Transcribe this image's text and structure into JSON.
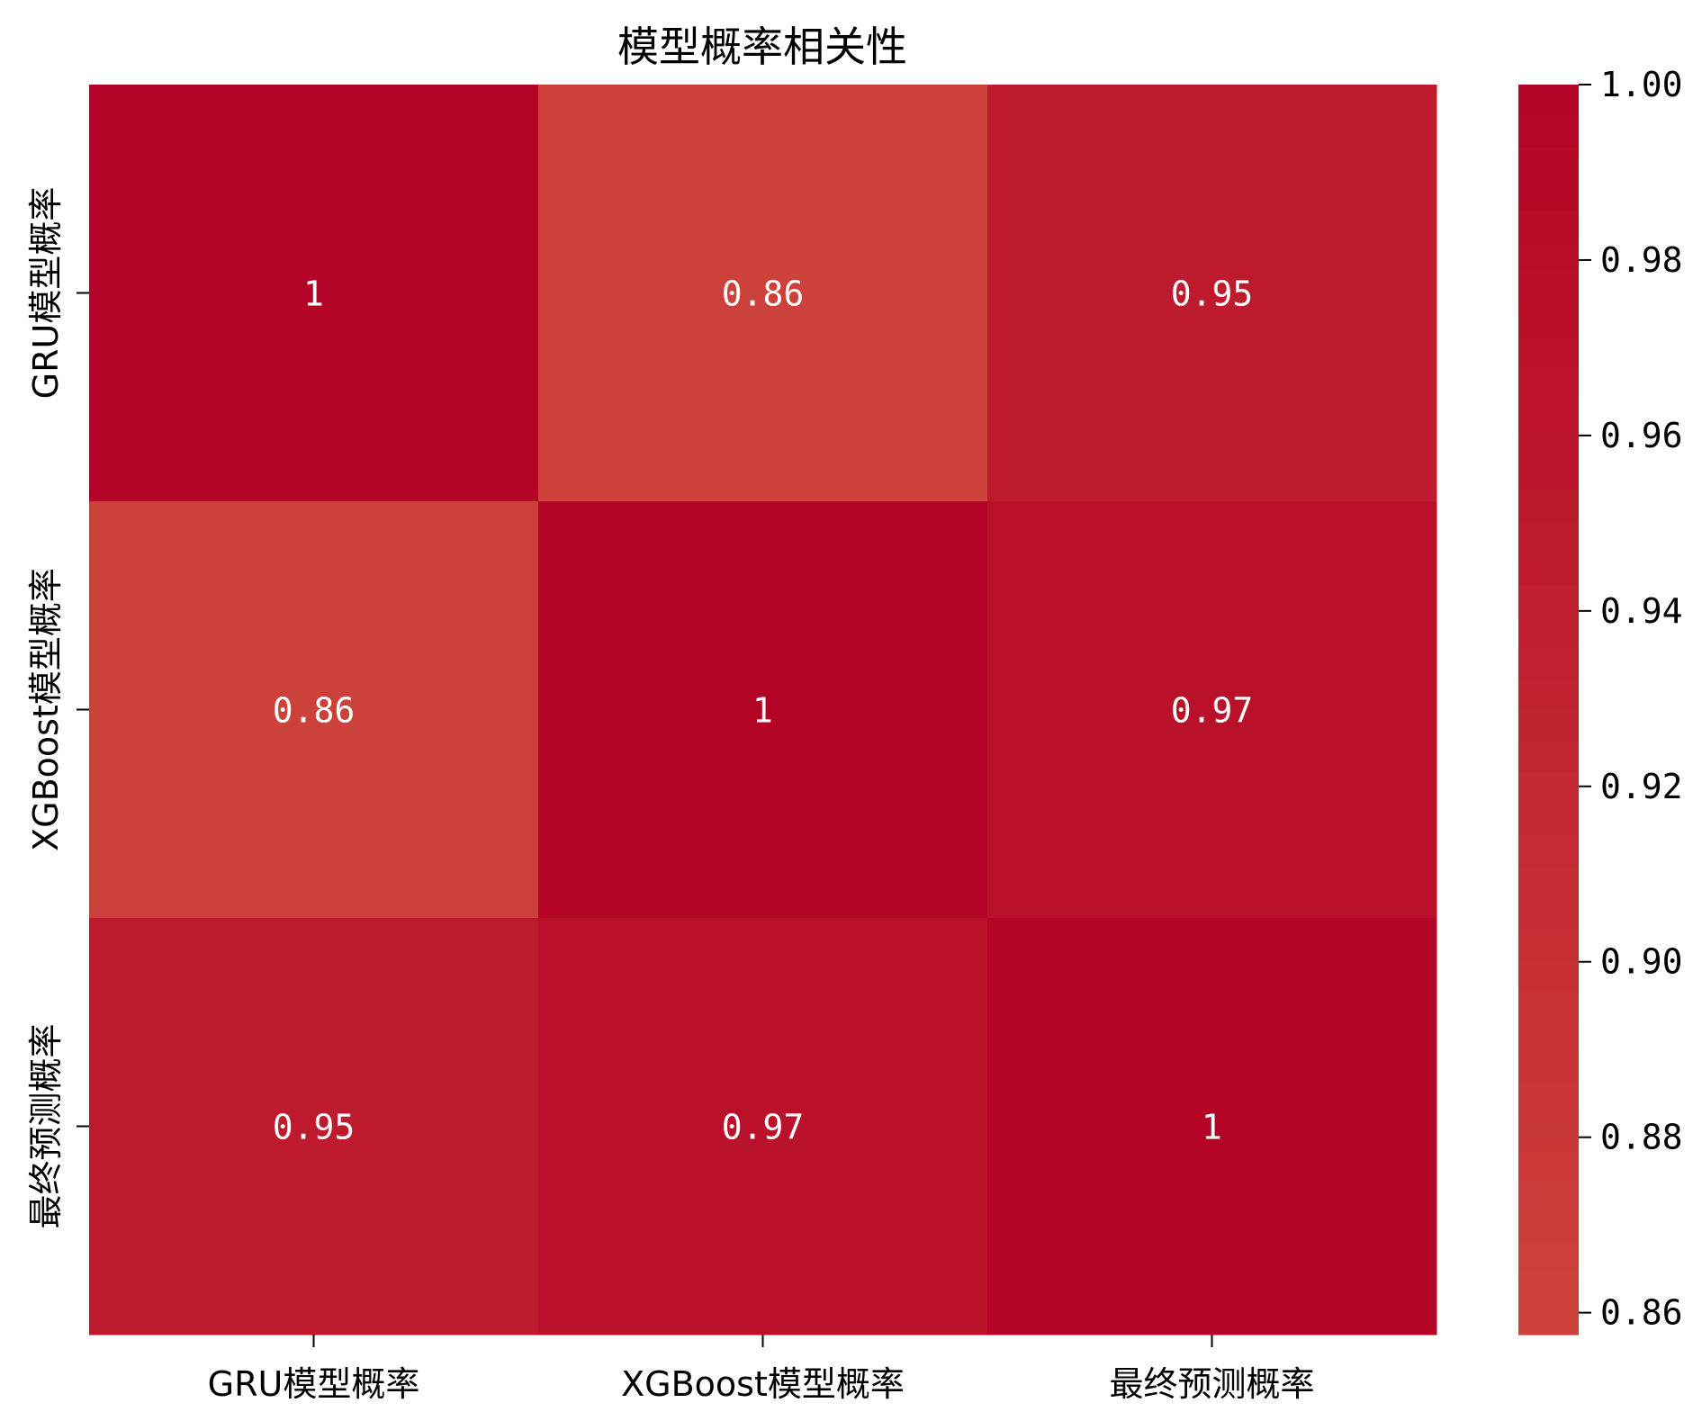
{
  "chart_data": {
    "type": "heatmap",
    "title": "模型概率相关性",
    "xlabel": "",
    "ylabel": "",
    "x_labels": [
      "GRU模型概率",
      "XGBoost模型概率",
      "最终预测概率"
    ],
    "y_labels": [
      "GRU模型概率",
      "XGBoost模型概率",
      "最终预测概率"
    ],
    "values": [
      [
        1.0,
        0.86,
        0.95
      ],
      [
        0.86,
        1.0,
        0.97
      ],
      [
        0.95,
        0.97,
        1.0
      ]
    ],
    "cell_labels": [
      [
        "1",
        "0.86",
        "0.95"
      ],
      [
        "0.86",
        "1",
        "0.97"
      ],
      [
        "0.95",
        "0.97",
        "1"
      ]
    ],
    "colorbar": {
      "ticks": [
        "0.86",
        "0.88",
        "0.90",
        "0.92",
        "0.94",
        "0.96",
        "0.98",
        "1.00"
      ],
      "range": [
        0.8575,
        1.0
      ]
    },
    "colormap": "coolwarm",
    "colors": {
      "low": "#cd423b",
      "high": "#b40426",
      "annotation": "#ffffff"
    }
  }
}
